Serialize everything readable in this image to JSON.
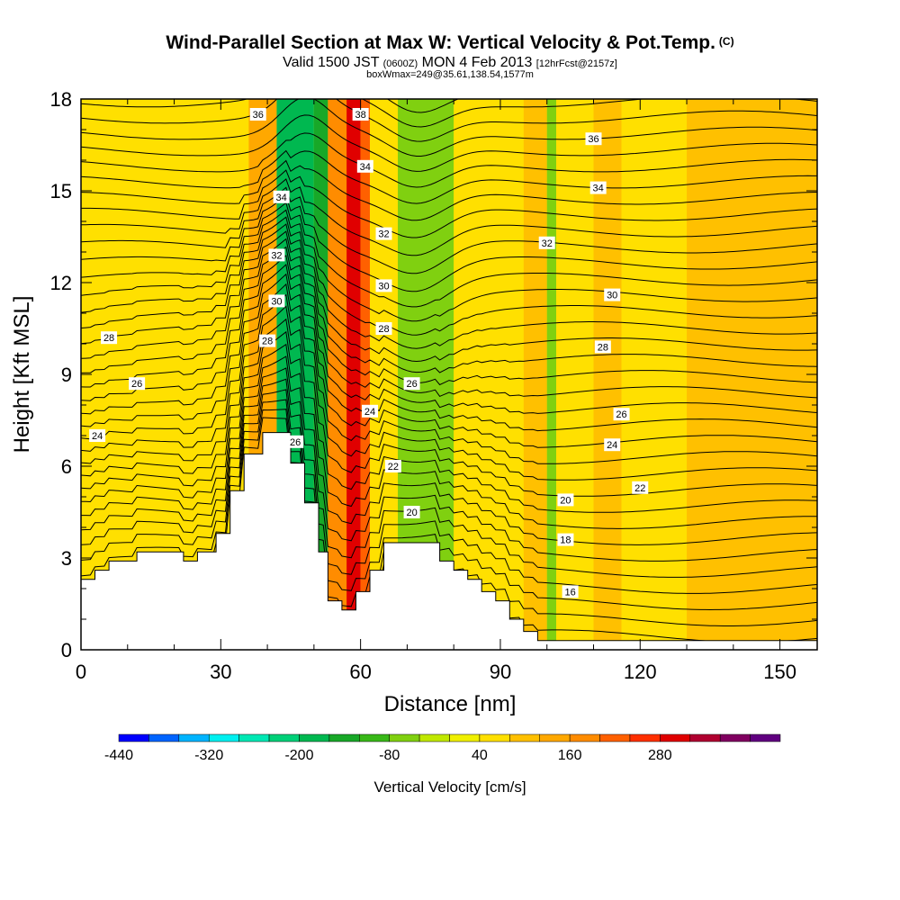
{
  "header": {
    "title": "Wind-Parallel Section at Max W: Vertical Velocity & Pot.Temp.",
    "copyright": "(C)",
    "valid_prefix": "Valid 1500 JST",
    "valid_utc": "(0600Z)",
    "valid_date": "MON 4 Feb 2013",
    "forecast": "[12hrFcst@2157z]",
    "box_info": "boxWmax=249@35.61,138.54,1577m"
  },
  "chart_data": {
    "type": "heatmap",
    "title": "Wind-Parallel Section at Max W: Vertical Velocity & Pot.Temp.",
    "xlabel": "Distance [nm]",
    "ylabel": "Height [Kft MSL]",
    "xlim": [
      0,
      158
    ],
    "ylim": [
      0,
      18
    ],
    "x_ticks": [
      0,
      30,
      60,
      90,
      120,
      150
    ],
    "y_ticks": [
      0,
      3,
      6,
      9,
      12,
      15,
      18
    ],
    "colorbar": {
      "label": "Vertical Velocity [cm/s]",
      "tick_labels": [
        "-440",
        "-320",
        "-200",
        "-80",
        "40",
        "160",
        "280"
      ],
      "tick_values": [
        -440,
        -320,
        -200,
        -80,
        40,
        160,
        280
      ],
      "colors": [
        "#0000ff",
        "#0064ff",
        "#00b4ff",
        "#00f0f0",
        "#00e8b4",
        "#00d078",
        "#00b850",
        "#18a828",
        "#38b818",
        "#80d010",
        "#c0e800",
        "#f0f000",
        "#ffe000",
        "#ffc000",
        "#ffa800",
        "#ff8c00",
        "#ff6000",
        "#ff3000",
        "#e00000",
        "#b00030",
        "#800060",
        "#600080"
      ]
    },
    "velocity_background": [
      {
        "x0": 0,
        "x1": 36,
        "value": 40
      },
      {
        "x0": 36,
        "x1": 42,
        "value": 120
      },
      {
        "x0": 42,
        "x1": 50,
        "value": -200
      },
      {
        "x0": 50,
        "x1": 53,
        "value": -140
      },
      {
        "x0": 53,
        "x1": 57,
        "value": 160
      },
      {
        "x0": 57,
        "x1": 60,
        "value": 280
      },
      {
        "x0": 60,
        "x1": 62,
        "value": 200
      },
      {
        "x0": 62,
        "x1": 68,
        "value": 40
      },
      {
        "x0": 68,
        "x1": 80,
        "value": -80
      },
      {
        "x0": 80,
        "x1": 95,
        "value": 40
      },
      {
        "x0": 95,
        "x1": 100,
        "value": 80
      },
      {
        "x0": 100,
        "x1": 102,
        "value": -80
      },
      {
        "x0": 102,
        "x1": 110,
        "value": 40
      },
      {
        "x0": 110,
        "x1": 116,
        "value": 80
      },
      {
        "x0": 116,
        "x1": 130,
        "value": 40
      },
      {
        "x0": 130,
        "x1": 158,
        "value": 80
      }
    ],
    "terrain": [
      {
        "x": 0,
        "h": 2.3
      },
      {
        "x": 3,
        "h": 2.6
      },
      {
        "x": 6,
        "h": 2.9
      },
      {
        "x": 12,
        "h": 3.2
      },
      {
        "x": 22,
        "h": 2.9
      },
      {
        "x": 25,
        "h": 3.2
      },
      {
        "x": 29,
        "h": 3.8
      },
      {
        "x": 32,
        "h": 5.2
      },
      {
        "x": 35,
        "h": 6.4
      },
      {
        "x": 39,
        "h": 7.1
      },
      {
        "x": 45,
        "h": 6.1
      },
      {
        "x": 48,
        "h": 4.8
      },
      {
        "x": 51,
        "h": 3.2
      },
      {
        "x": 53,
        "h": 1.6
      },
      {
        "x": 56,
        "h": 1.3
      },
      {
        "x": 59,
        "h": 1.9
      },
      {
        "x": 62,
        "h": 2.6
      },
      {
        "x": 65,
        "h": 3.5
      },
      {
        "x": 73,
        "h": 3.5
      },
      {
        "x": 77,
        "h": 2.9
      },
      {
        "x": 80,
        "h": 2.6
      },
      {
        "x": 83,
        "h": 2.3
      },
      {
        "x": 86,
        "h": 1.9
      },
      {
        "x": 89,
        "h": 1.6
      },
      {
        "x": 92,
        "h": 1.0
      },
      {
        "x": 95,
        "h": 0.6
      },
      {
        "x": 98,
        "h": 0.3
      },
      {
        "x": 158,
        "h": 0.3
      }
    ],
    "theta_labels": [
      {
        "text": "36",
        "x": 38,
        "y": 17.5
      },
      {
        "text": "38",
        "x": 60,
        "y": 17.5
      },
      {
        "text": "34",
        "x": 61,
        "y": 15.8
      },
      {
        "text": "36",
        "x": 110,
        "y": 16.7
      },
      {
        "text": "34",
        "x": 111,
        "y": 15.1
      },
      {
        "text": "34",
        "x": 43,
        "y": 14.8
      },
      {
        "text": "32",
        "x": 65,
        "y": 13.6
      },
      {
        "text": "32",
        "x": 100,
        "y": 13.3
      },
      {
        "text": "32",
        "x": 42,
        "y": 12.9
      },
      {
        "text": "30",
        "x": 65,
        "y": 11.9
      },
      {
        "text": "30",
        "x": 114,
        "y": 11.6
      },
      {
        "text": "30",
        "x": 42,
        "y": 11.4
      },
      {
        "text": "28",
        "x": 6,
        "y": 10.2
      },
      {
        "text": "28",
        "x": 65,
        "y": 10.5
      },
      {
        "text": "28",
        "x": 40,
        "y": 10.1
      },
      {
        "text": "28",
        "x": 112,
        "y": 9.9
      },
      {
        "text": "26",
        "x": 12,
        "y": 8.7
      },
      {
        "text": "26",
        "x": 71,
        "y": 8.7
      },
      {
        "text": "26",
        "x": 116,
        "y": 7.7
      },
      {
        "text": "26",
        "x": 46,
        "y": 6.8
      },
      {
        "text": "24",
        "x": 3.5,
        "y": 7.0
      },
      {
        "text": "24",
        "x": 62,
        "y": 7.8
      },
      {
        "text": "24",
        "x": 114,
        "y": 6.7
      },
      {
        "text": "22",
        "x": 67,
        "y": 6.0
      },
      {
        "text": "22",
        "x": 120,
        "y": 5.3
      },
      {
        "text": "20",
        "x": 71,
        "y": 4.5
      },
      {
        "text": "20",
        "x": 104,
        "y": 4.9
      },
      {
        "text": "18",
        "x": 104,
        "y": 3.6
      },
      {
        "text": "16",
        "x": 105,
        "y": 1.9
      }
    ]
  }
}
